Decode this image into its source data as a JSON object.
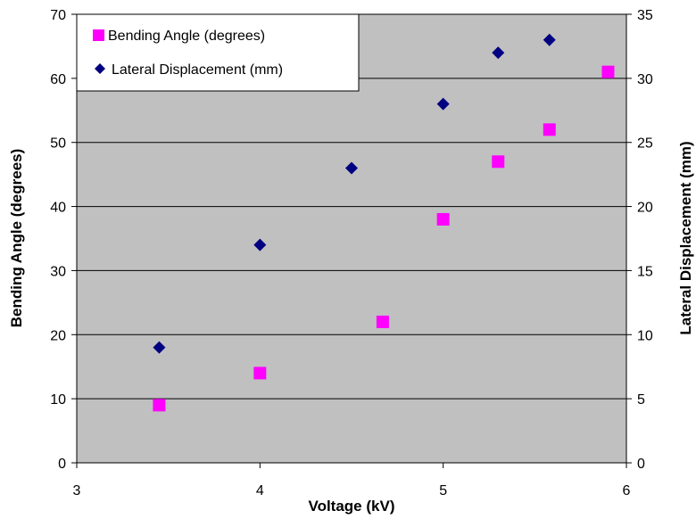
{
  "chart_data": {
    "type": "scatter",
    "xlabel": "Voltage (kV)",
    "ylabel_left": "Bending Angle (degrees)",
    "ylabel_right": "Lateral Displacement (mm)",
    "xlim": [
      3,
      6
    ],
    "ylim_left": [
      0,
      70
    ],
    "ylim_right": [
      0,
      35
    ],
    "x_ticks": [
      "3",
      "4",
      "5",
      "6"
    ],
    "y_left_ticks": [
      "0",
      "10",
      "20",
      "30",
      "40",
      "50",
      "60",
      "70"
    ],
    "y_right_ticks": [
      "0",
      "5",
      "10",
      "15",
      "20",
      "25",
      "30",
      "35"
    ],
    "grid": "horizontal",
    "plot_background": "#c0c0c0",
    "legend_position": "top-left",
    "series": [
      {
        "name": "Bending Angle (degrees)",
        "axis": "left",
        "marker": "square",
        "color": "#ff00ff",
        "points": [
          {
            "x": 3.45,
            "y": 9
          },
          {
            "x": 4.0,
            "y": 14
          },
          {
            "x": 4.67,
            "y": 22
          },
          {
            "x": 5.0,
            "y": 38
          },
          {
            "x": 5.3,
            "y": 47
          },
          {
            "x": 5.58,
            "y": 52
          },
          {
            "x": 5.9,
            "y": 61
          }
        ]
      },
      {
        "name": "Lateral Displacement (mm)",
        "axis": "right",
        "marker": "diamond",
        "color": "#000080",
        "points": [
          {
            "x": 3.45,
            "y": 9
          },
          {
            "x": 4.0,
            "y": 17
          },
          {
            "x": 4.5,
            "y": 23
          },
          {
            "x": 5.0,
            "y": 28
          },
          {
            "x": 5.3,
            "y": 32
          },
          {
            "x": 5.58,
            "y": 33
          }
        ]
      }
    ]
  }
}
